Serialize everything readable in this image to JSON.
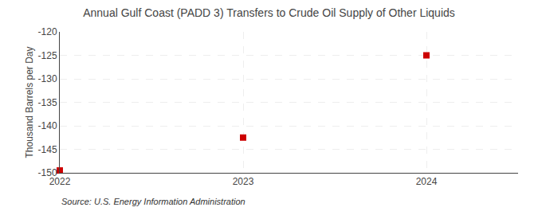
{
  "chart_data": {
    "type": "scatter",
    "title": "Annual Gulf Coast (PADD 3) Transfers to Crude Oil Supply of Other Liquids",
    "ylabel": "Thousand Barrels per Day",
    "x": [
      2022,
      2023,
      2024
    ],
    "values": [
      -149.5,
      -142.5,
      -125.0
    ],
    "color": "#cc0000",
    "marker": "square",
    "xlim": [
      2022.0,
      2024.5
    ],
    "xticks": [
      2022,
      2023,
      2024
    ],
    "ylim": [
      -150,
      -120
    ],
    "yticks": [
      -150,
      -145,
      -140,
      -135,
      -130,
      -125,
      -120
    ],
    "grid": true,
    "annotations": [
      "Source: U.S. Energy Information Administration"
    ]
  }
}
